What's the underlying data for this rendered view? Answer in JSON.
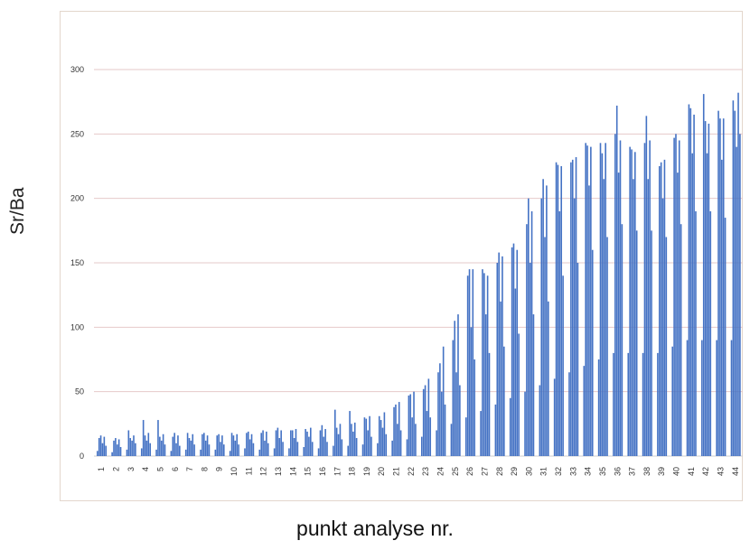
{
  "chart_data": {
    "type": "bar",
    "title": "",
    "ylabel": "Sr/Ba",
    "xlabel": "punkt analyse nr.",
    "ylim": [
      0,
      300
    ],
    "yticks": [
      0,
      50,
      100,
      150,
      200,
      250,
      300
    ],
    "grid": true,
    "legend": "none",
    "bar_color": "#4472c4",
    "gridline_color": "#e6c9c9",
    "categories": [
      "1",
      "2",
      "3",
      "4",
      "5",
      "6",
      "7",
      "8",
      "9",
      "10",
      "11",
      "12",
      "13",
      "14",
      "15",
      "16",
      "17",
      "18",
      "19",
      "20",
      "21",
      "22",
      "23",
      "24",
      "25",
      "26",
      "27",
      "28",
      "29",
      "30",
      "31",
      "32",
      "33",
      "34",
      "35",
      "36",
      "37",
      "38",
      "39",
      "40",
      "41",
      "42",
      "43",
      "44"
    ],
    "values": [
      [
        4,
        14,
        16,
        10,
        15,
        8
      ],
      [
        3,
        12,
        14,
        9,
        13,
        7
      ],
      [
        5,
        20,
        14,
        12,
        16,
        10
      ],
      [
        6,
        28,
        16,
        12,
        18,
        10
      ],
      [
        5,
        28,
        15,
        12,
        17,
        9
      ],
      [
        4,
        15,
        18,
        10,
        16,
        8
      ],
      [
        5,
        18,
        14,
        12,
        17,
        9
      ],
      [
        5,
        17,
        18,
        12,
        16,
        9
      ],
      [
        5,
        16,
        17,
        11,
        16,
        9
      ],
      [
        4,
        18,
        16,
        12,
        17,
        9
      ],
      [
        6,
        18,
        19,
        13,
        17,
        10
      ],
      [
        5,
        18,
        20,
        12,
        19,
        10
      ],
      [
        6,
        20,
        22,
        14,
        20,
        11
      ],
      [
        6,
        20,
        20,
        14,
        21,
        11
      ],
      [
        7,
        21,
        19,
        15,
        22,
        11
      ],
      [
        6,
        20,
        24,
        15,
        21,
        11
      ],
      [
        8,
        36,
        22,
        17,
        25,
        13
      ],
      [
        8,
        35,
        25,
        19,
        26,
        14
      ],
      [
        9,
        30,
        29,
        20,
        31,
        15
      ],
      [
        10,
        31,
        28,
        22,
        34,
        17
      ],
      [
        12,
        38,
        40,
        25,
        42,
        20
      ],
      [
        13,
        47,
        48,
        30,
        50,
        25
      ],
      [
        15,
        52,
        55,
        35,
        60,
        30
      ],
      [
        20,
        65,
        72,
        50,
        85,
        40
      ],
      [
        25,
        90,
        105,
        65,
        110,
        55
      ],
      [
        30,
        140,
        145,
        100,
        145,
        75
      ],
      [
        35,
        145,
        142,
        110,
        140,
        80
      ],
      [
        40,
        150,
        158,
        120,
        155,
        85
      ],
      [
        45,
        162,
        165,
        130,
        160,
        95
      ],
      [
        50,
        180,
        200,
        150,
        190,
        110
      ],
      [
        55,
        200,
        215,
        170,
        210,
        120
      ],
      [
        60,
        228,
        226,
        190,
        225,
        140
      ],
      [
        65,
        228,
        230,
        200,
        232,
        150
      ],
      [
        70,
        243,
        241,
        210,
        240,
        160
      ],
      [
        75,
        243,
        235,
        215,
        243,
        170
      ],
      [
        80,
        250,
        272,
        220,
        245,
        180
      ],
      [
        80,
        240,
        238,
        215,
        236,
        175
      ],
      [
        80,
        243,
        264,
        215,
        245,
        175
      ],
      [
        80,
        225,
        228,
        200,
        230,
        170
      ],
      [
        85,
        247,
        250,
        220,
        245,
        180
      ],
      [
        90,
        273,
        270,
        235,
        265,
        190
      ],
      [
        90,
        281,
        260,
        235,
        258,
        190
      ],
      [
        90,
        268,
        262,
        230,
        262,
        185
      ],
      [
        90,
        276,
        268,
        240,
        282,
        250
      ]
    ]
  }
}
